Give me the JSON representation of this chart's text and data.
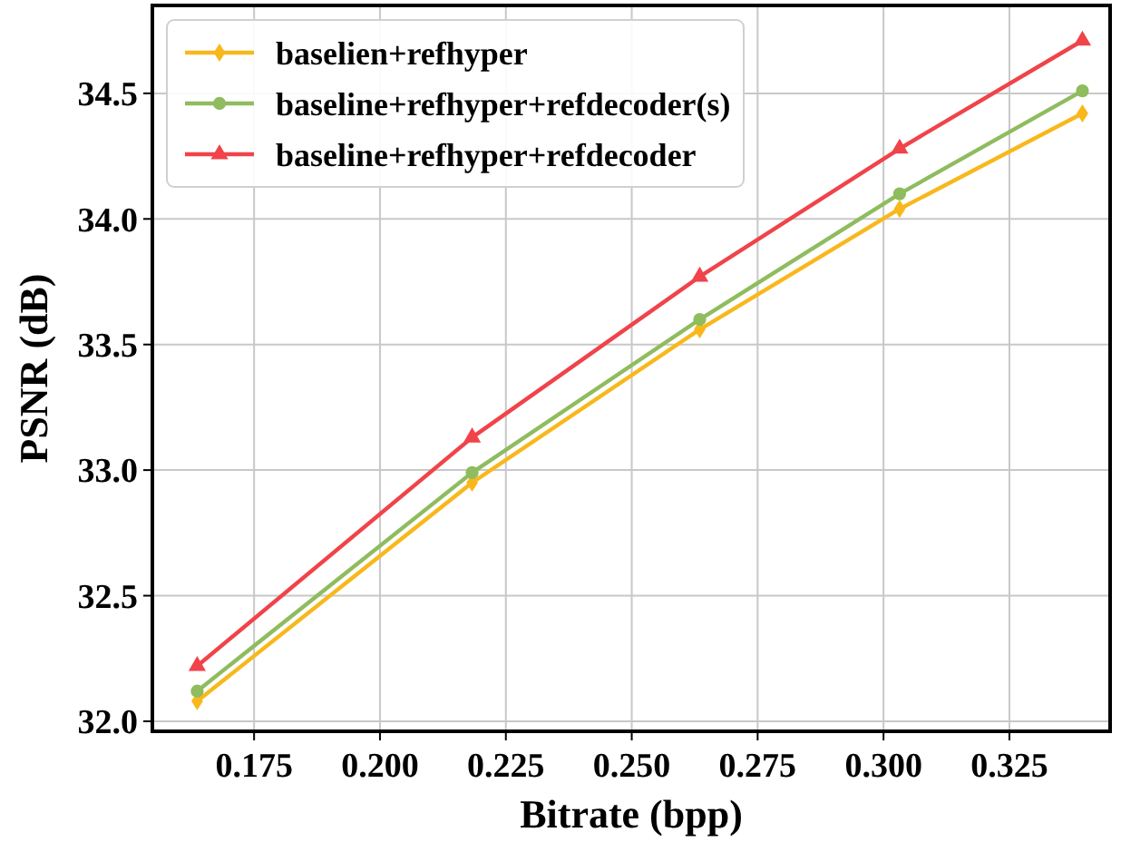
{
  "chart_data": {
    "type": "line",
    "xlabel": "Bitrate (bpp)",
    "ylabel": "PSNR (dB)",
    "x": [
      0.1637,
      0.2183,
      0.2635,
      0.3032,
      0.3395
    ],
    "xlim": [
      0.1548,
      0.345
    ],
    "xticks": [
      0.175,
      {
        "value": 0.2,
        "label": "0.200"
      },
      0.225,
      {
        "value": 0.25,
        "label": "0.250"
      },
      0.275,
      {
        "value": 0.3,
        "label": "0.300"
      },
      0.325
    ],
    "ylim": [
      31.96,
      34.85
    ],
    "yticks": [
      {
        "value": 32,
        "label": "32.0"
      },
      32.5,
      {
        "value": 33,
        "label": "33.0"
      },
      33.5,
      {
        "value": 34,
        "label": "34.0"
      },
      34.5
    ],
    "grid": true,
    "legend": "top left",
    "line_style": "solid",
    "series": [
      {
        "name": "baselien+refhyper",
        "color": "#f8b81c",
        "marker": "diamond",
        "values": [
          32.08,
          32.95,
          33.56,
          34.04,
          34.42
        ]
      },
      {
        "name": "baseline+refhyper+refdecoder(s)",
        "color": "#8fbc5e",
        "marker": "circle",
        "values": [
          32.12,
          32.99,
          33.6,
          34.1,
          34.51
        ]
      },
      {
        "name": "baseline+refhyper+refdecoder",
        "color": "#f0434a",
        "marker": "triangle",
        "values": [
          32.22,
          33.13,
          33.77,
          34.28,
          34.71
        ]
      }
    ]
  }
}
